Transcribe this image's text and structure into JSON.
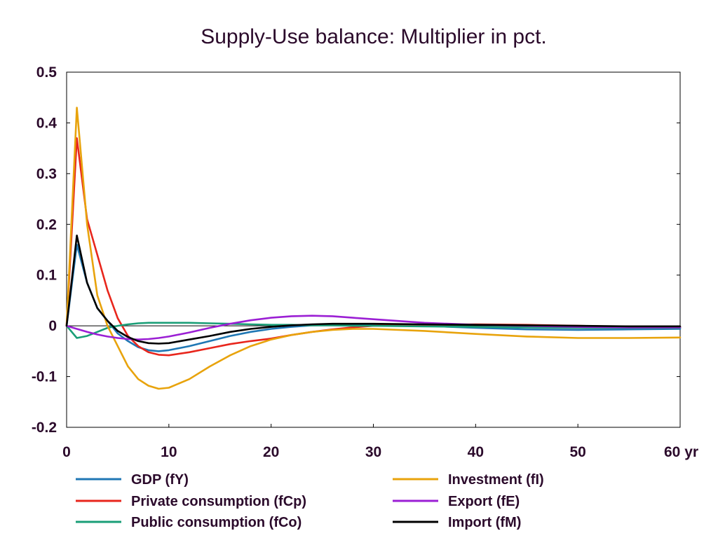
{
  "chart_data": {
    "type": "line",
    "title": "Supply-Use balance: Multiplier in pct.",
    "xlabel": "",
    "ylabel": "",
    "xlim": [
      0,
      60
    ],
    "ylim": [
      -0.2,
      0.5
    ],
    "x_ticks": [
      "0",
      "10",
      "20",
      "30",
      "40",
      "50",
      "60 yr"
    ],
    "y_ticks": [
      "-0.2",
      "-0.1",
      "0",
      "0.1",
      "0.2",
      "0.3",
      "0.4",
      "0.5"
    ],
    "grid": false,
    "legend_position": "bottom",
    "x": [
      0,
      1,
      2,
      3,
      4,
      5,
      6,
      7,
      8,
      9,
      10,
      12,
      14,
      16,
      18,
      20,
      22,
      24,
      26,
      28,
      30,
      35,
      40,
      45,
      50,
      55,
      60
    ],
    "series": [
      {
        "name": "GDP (fY)",
        "color": "#1f77b4",
        "values": [
          0,
          0.16,
          0.085,
          0.035,
          0.01,
          -0.015,
          -0.03,
          -0.042,
          -0.048,
          -0.05,
          -0.048,
          -0.04,
          -0.03,
          -0.02,
          -0.012,
          -0.006,
          -0.002,
          0.001,
          0.002,
          0.002,
          0.002,
          0,
          -0.004,
          -0.007,
          -0.008,
          -0.007,
          -0.006
        ]
      },
      {
        "name": "Private consumption (fCp)",
        "color": "#e8261c",
        "values": [
          0,
          0.37,
          0.21,
          0.14,
          0.07,
          0.015,
          -0.02,
          -0.04,
          -0.052,
          -0.057,
          -0.058,
          -0.052,
          -0.044,
          -0.036,
          -0.03,
          -0.025,
          -0.018,
          -0.012,
          -0.007,
          -0.003,
          0,
          0.002,
          0.003,
          0.002,
          0,
          -0.002,
          -0.003
        ]
      },
      {
        "name": "Public consumption (fCo)",
        "color": "#1a9e77",
        "values": [
          0,
          -0.024,
          -0.02,
          -0.012,
          -0.004,
          0,
          0.003,
          0.005,
          0.006,
          0.006,
          0.006,
          0.006,
          0.005,
          0.004,
          0.003,
          0.002,
          0.002,
          0.001,
          0.001,
          0,
          0,
          -0.001,
          -0.002,
          -0.003,
          -0.004,
          -0.004,
          -0.004
        ]
      },
      {
        "name": "Investment (fI)",
        "color": "#e8a30c",
        "values": [
          0,
          0.43,
          0.2,
          0.06,
          0.0,
          -0.04,
          -0.08,
          -0.105,
          -0.118,
          -0.124,
          -0.122,
          -0.105,
          -0.08,
          -0.058,
          -0.04,
          -0.027,
          -0.018,
          -0.012,
          -0.008,
          -0.006,
          -0.006,
          -0.01,
          -0.016,
          -0.021,
          -0.024,
          -0.024,
          -0.023
        ]
      },
      {
        "name": "Export (fE)",
        "color": "#9b1fd4",
        "values": [
          0,
          -0.006,
          -0.012,
          -0.017,
          -0.021,
          -0.024,
          -0.026,
          -0.027,
          -0.026,
          -0.024,
          -0.021,
          -0.013,
          -0.004,
          0.004,
          0.011,
          0.016,
          0.019,
          0.02,
          0.019,
          0.016,
          0.013,
          0.006,
          0.002,
          0,
          -0.002,
          -0.003,
          -0.003
        ]
      },
      {
        "name": "Import (fM)",
        "color": "#000000",
        "values": [
          0,
          0.178,
          0.085,
          0.035,
          0.01,
          -0.01,
          -0.022,
          -0.03,
          -0.034,
          -0.035,
          -0.034,
          -0.027,
          -0.02,
          -0.012,
          -0.006,
          -0.002,
          0.001,
          0.003,
          0.004,
          0.004,
          0.004,
          0.003,
          0.002,
          0.001,
          0,
          -0.001,
          -0.001
        ]
      }
    ]
  }
}
